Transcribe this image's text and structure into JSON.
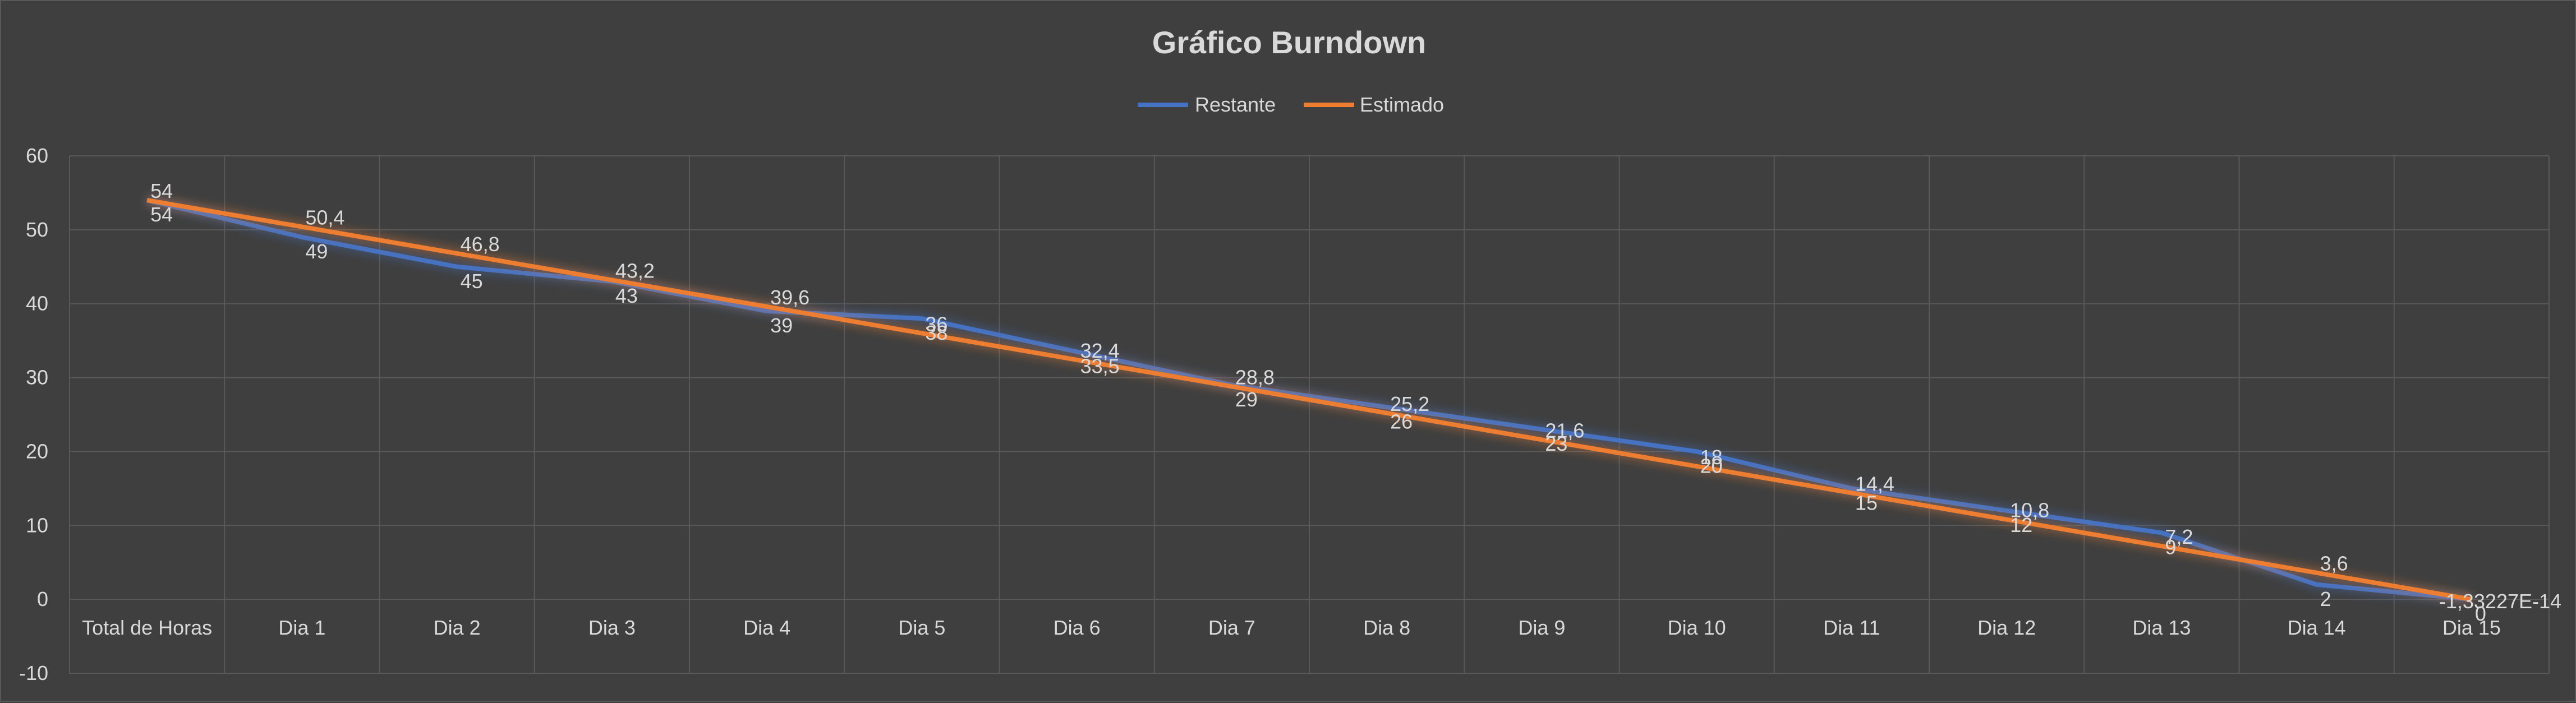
{
  "chart_data": {
    "type": "line",
    "title": "Gráfico Burndown",
    "categories": [
      "Total de Horas",
      "Dia 1",
      "Dia 2",
      "Dia 3",
      "Dia 4",
      "Dia 5",
      "Dia 6",
      "Dia 7",
      "Dia 8",
      "Dia 9",
      "Dia 10",
      "Dia 11",
      "Dia 12",
      "Dia 13",
      "Dia 14",
      "Dia 15"
    ],
    "series": [
      {
        "name": "Restante",
        "color": "#4472c4",
        "values": [
          54,
          49,
          45,
          43,
          39,
          38,
          33.5,
          29,
          26,
          23,
          20,
          15,
          12,
          9,
          2,
          0
        ],
        "labels": [
          "54",
          "49",
          "45",
          "43",
          "39",
          "38",
          "33,5",
          "29",
          "26",
          "23",
          "20",
          "15",
          "12",
          "9",
          "2",
          "0"
        ]
      },
      {
        "name": "Estimado",
        "color": "#ed7d31",
        "values": [
          54,
          50.4,
          46.8,
          43.2,
          39.6,
          36,
          32.4,
          28.8,
          25.2,
          21.6,
          18,
          14.4,
          10.8,
          7.2,
          3.6,
          0
        ],
        "labels": [
          "54",
          "50,4",
          "46,8",
          "43,2",
          "39,6",
          "36",
          "32,4",
          "28,8",
          "25,2",
          "21,6",
          "18",
          "14,4",
          "10,8",
          "7,2",
          "3,6",
          "-1,33227E-14"
        ]
      }
    ],
    "yticks": [
      "-10",
      "0",
      "10",
      "20",
      "30",
      "40",
      "50",
      "60"
    ],
    "ylim": [
      -10,
      60
    ],
    "grid": true,
    "legend": "top-center",
    "xlabel": "",
    "ylabel": ""
  }
}
